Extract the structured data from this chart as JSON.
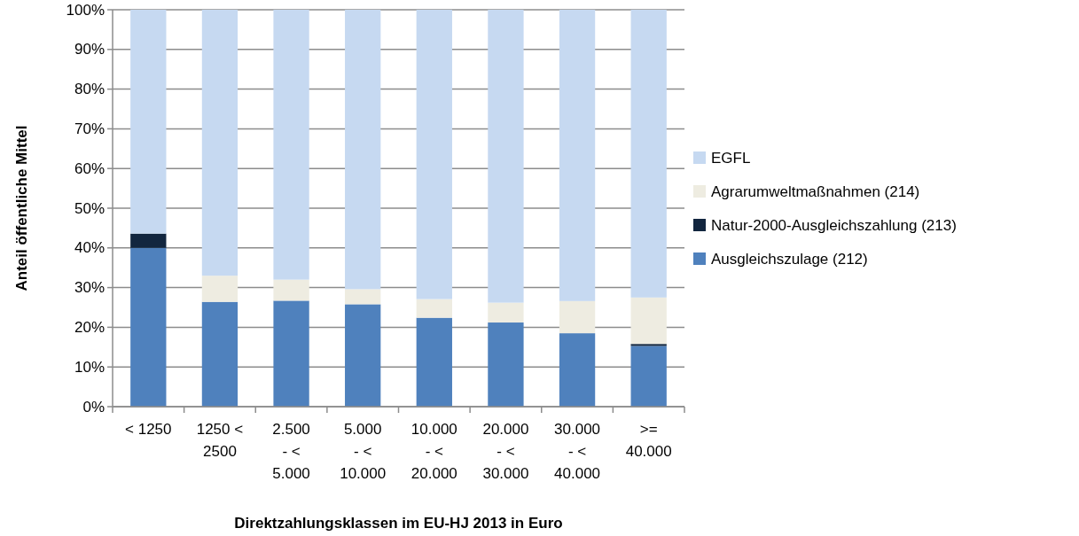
{
  "chart_data": {
    "type": "bar",
    "stacked": true,
    "xlabel": "Direktzahlungsklassen im EU-HJ 2013 in Euro",
    "ylabel": "Anteil öffentliche Mittel",
    "categories": [
      "< 1250",
      "1250 < 2500",
      "2.500 - < 5.000",
      "5.000 - < 10.000",
      "10.000 - < 20.000",
      "20.000 - < 30.000",
      "30.000 - < 40.000",
      ">= 40.000"
    ],
    "series": [
      {
        "name": "Ausgleichszulage (212)",
        "color": "#4f81bd",
        "values": [
          40.0,
          26.4,
          26.7,
          25.8,
          22.4,
          21.2,
          18.5,
          15.3
        ]
      },
      {
        "name": "Natur-2000-Ausgleichszahlung (213)",
        "color": "#12263f",
        "values": [
          3.6,
          0,
          0,
          0,
          0,
          0,
          0,
          0.5
        ]
      },
      {
        "name": "Agrarumweltmaßnahmen (214)",
        "color": "#eeece1",
        "values": [
          0,
          6.6,
          5.3,
          3.8,
          4.7,
          5.0,
          8.1,
          11.7
        ]
      },
      {
        "name": "EGFL",
        "color": "#c6d9f1",
        "values": [
          56.4,
          67.0,
          68.0,
          70.4,
          72.9,
          73.8,
          73.4,
          72.5
        ]
      }
    ],
    "ylim": [
      0,
      100
    ],
    "yticks": [
      {
        "value": 0,
        "label": "0%"
      },
      {
        "value": 10,
        "label": "10%"
      },
      {
        "value": 20,
        "label": "20%"
      },
      {
        "value": 30,
        "label": "30%"
      },
      {
        "value": 40,
        "label": "40%"
      },
      {
        "value": 50,
        "label": "50%"
      },
      {
        "value": 60,
        "label": "60%"
      },
      {
        "value": 70,
        "label": "70%"
      },
      {
        "value": 80,
        "label": "80%"
      },
      {
        "value": 90,
        "label": "90%"
      },
      {
        "value": 100,
        "label": "100%"
      }
    ],
    "grid": "y",
    "legend": "right"
  }
}
